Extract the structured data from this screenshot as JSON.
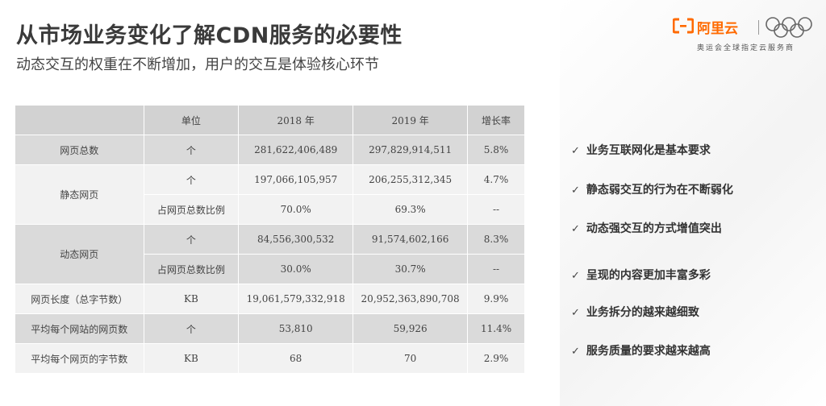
{
  "header": {
    "title": "从市场业务变化了解CDN服务的必要性",
    "subtitle": "动态交互的权重在不断增加，用户的交互是体验核心环节"
  },
  "logo": {
    "mark_icon": "aliyun-mark-icon",
    "name": "阿里云",
    "rings_icon": "olympic-rings-icon",
    "tagline": "奥运会全球指定云服务商",
    "brand_color": "#ff6a00"
  },
  "table": {
    "headers": [
      "",
      "单位",
      "2018 年",
      "2019 年",
      "增长率"
    ],
    "rows": [
      {
        "label": "网页总数",
        "unit": "个",
        "y2018": "281,622,406,489",
        "y2019": "297,829,914,511",
        "growth": "5.8%"
      },
      {
        "label": "静态网页",
        "sub": [
          {
            "unit": "个",
            "y2018": "197,066,105,957",
            "y2019": "206,255,312,345",
            "growth": "4.7%"
          },
          {
            "unit": "占网页总数比例",
            "y2018": "70.0%",
            "y2019": "69.3%",
            "growth": "--"
          }
        ]
      },
      {
        "label": "动态网页",
        "sub": [
          {
            "unit": "个",
            "y2018": "84,556,300,532",
            "y2019": "91,574,602,166",
            "growth": "8.3%"
          },
          {
            "unit": "占网页总数比例",
            "y2018": "30.0%",
            "y2019": "30.7%",
            "growth": "--"
          }
        ]
      },
      {
        "label": "网页长度（总字节数）",
        "unit": "KB",
        "y2018": "19,061,579,332,918",
        "y2019": "20,952,363,890,708",
        "growth": "9.9%"
      },
      {
        "label": "平均每个网站的网页数",
        "unit": "个",
        "y2018": "53,810",
        "y2019": "59,926",
        "growth": "11.4%"
      },
      {
        "label": "平均每个网页的字节数",
        "unit": "KB",
        "y2018": "68",
        "y2019": "70",
        "growth": "2.9%"
      }
    ]
  },
  "bullets": {
    "check_icon": "check-icon",
    "items": [
      "业务互联网化是基本要求",
      "静态弱交互的行为在不断弱化",
      "动态强交互的方式增值突出",
      "呈现的内容更加丰富多彩",
      "业务拆分的越来越细致",
      "服务质量的要求越来越高"
    ]
  }
}
